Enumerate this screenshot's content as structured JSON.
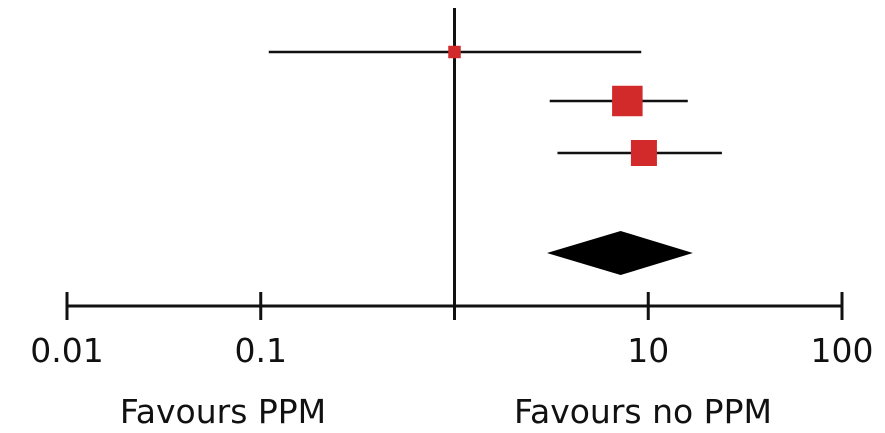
{
  "chart_data": {
    "type": "forest",
    "x_scale": "log",
    "xlim": [
      0.01,
      100
    ],
    "x_ticks": [
      0.01,
      0.1,
      1,
      10,
      100
    ],
    "x_tick_labels": [
      "0.01",
      "0.1",
      "",
      "10",
      "100"
    ],
    "reference_line": 1,
    "studies": [
      {
        "estimate": 1.0,
        "ci_low": 0.11,
        "ci_high": 9.2,
        "weight": 0.15
      },
      {
        "estimate": 7.8,
        "ci_low": 3.1,
        "ci_high": 16.0,
        "weight": 0.75
      },
      {
        "estimate": 9.5,
        "ci_low": 3.4,
        "ci_high": 24.0,
        "weight": 0.6
      }
    ],
    "pooled": {
      "estimate": 7.2,
      "ci_low": 3.0,
      "ci_high": 17.0
    },
    "favours_left": "Favours PPM",
    "favours_right": "Favours no PPM",
    "colors": {
      "study_marker": "#d22a2a",
      "lines": "#111111",
      "pooled": "#000000"
    }
  }
}
